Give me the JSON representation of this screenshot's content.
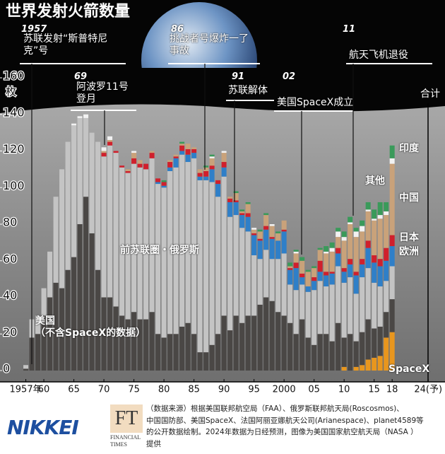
{
  "chart_data": {
    "type": "bar",
    "stacked": true,
    "title": "世界发射火箭数量",
    "y_unit": "枚",
    "total_label": "合计",
    "x": [
      1957,
      1958,
      1959,
      1960,
      1961,
      1962,
      1963,
      1964,
      1965,
      1966,
      1967,
      1968,
      1969,
      1970,
      1971,
      1972,
      1973,
      1974,
      1975,
      1976,
      1977,
      1978,
      1979,
      1980,
      1981,
      1982,
      1983,
      1984,
      1985,
      1986,
      1987,
      1988,
      1989,
      1990,
      1991,
      1992,
      1993,
      1994,
      1995,
      1996,
      1997,
      1998,
      1999,
      2000,
      2001,
      2002,
      2003,
      2004,
      2005,
      2006,
      2007,
      2008,
      2009,
      2010,
      2011,
      2012,
      2013,
      2014,
      2015,
      2016,
      2017,
      2018
    ],
    "xlim": [
      1952.7,
      2026.8
    ],
    "xticks": [
      {
        "value": 1957,
        "label": "1957年"
      },
      {
        "value": 1960,
        "label": "60"
      },
      {
        "value": 1965,
        "label": "65"
      },
      {
        "value": 1970,
        "label": "70"
      },
      {
        "value": 1975,
        "label": "75"
      },
      {
        "value": 1980,
        "label": "80"
      },
      {
        "value": 1985,
        "label": "85"
      },
      {
        "value": 1990,
        "label": "90"
      },
      {
        "value": 1995,
        "label": "95"
      },
      2000,
      {
        "value": 2005,
        "label": "05"
      },
      {
        "value": 2010,
        "label": "10"
      },
      {
        "value": 2015,
        "label": "15"
      },
      {
        "value": 2018,
        "label": "18"
      },
      {
        "value": 2024,
        "label": "24(予)"
      }
    ],
    "ylim": [
      0,
      160
    ],
    "yticks": [
      0,
      20,
      40,
      60,
      80,
      100,
      120,
      140,
      160
    ],
    "series": [
      {
        "name": "SpaceX",
        "color": "#e8961e",
        "values": [
          0,
          0,
          0,
          0,
          0,
          0,
          0,
          0,
          0,
          0,
          0,
          0,
          0,
          0,
          0,
          0,
          0,
          0,
          0,
          0,
          0,
          0,
          0,
          0,
          0,
          0,
          0,
          0,
          0,
          0,
          0,
          0,
          0,
          0,
          0,
          0,
          0,
          0,
          0,
          0,
          0,
          0,
          0,
          0,
          0,
          0,
          0,
          0,
          0,
          0,
          0,
          0,
          0,
          2,
          0,
          2,
          3,
          6,
          7,
          8,
          18,
          21
        ]
      },
      {
        "name": "美国\n（不含SpaceX的数据）",
        "color": "#4a4745",
        "values": [
          1,
          18,
          20,
          30,
          40,
          48,
          45,
          55,
          62,
          80,
          95,
          75,
          55,
          40,
          40,
          35,
          30,
          28,
          32,
          28,
          28,
          32,
          20,
          18,
          20,
          20,
          24,
          26,
          20,
          10,
          10,
          14,
          20,
          30,
          22,
          30,
          26,
          30,
          30,
          36,
          40,
          38,
          32,
          30,
          26,
          20,
          28,
          18,
          14,
          20,
          20,
          16,
          26,
          16,
          20,
          14,
          18,
          22,
          16,
          16,
          14,
          18
        ]
      },
      {
        "name": "前苏联圏・俄罗斯",
        "color": "#c4c4c4",
        "values": [
          2,
          10,
          10,
          15,
          25,
          47,
          65,
          70,
          72,
          58,
          43,
          55,
          70,
          77,
          83,
          84,
          81,
          80,
          81,
          83,
          82,
          84,
          82,
          82,
          89,
          91,
          94,
          88,
          96,
          94,
          94,
          89,
          75,
          76,
          62,
          55,
          52,
          46,
          33,
          25,
          26,
          23,
          29,
          34,
          21,
          24,
          19,
          25,
          30,
          29,
          26,
          31,
          31,
          30,
          31,
          26,
          30,
          28,
          25,
          22,
          17,
          18
        ]
      },
      {
        "name": "欧洲",
        "color": "#2f7fc8",
        "values": [
          0,
          0,
          0,
          0,
          0,
          0,
          0,
          0,
          0,
          0,
          0,
          0,
          0,
          0,
          0,
          0,
          0,
          0,
          0,
          0,
          0,
          0,
          1,
          1,
          2,
          5,
          2,
          4,
          3,
          2,
          2,
          7,
          7,
          5,
          8,
          7,
          7,
          8,
          11,
          10,
          11,
          11,
          10,
          12,
          8,
          12,
          4,
          3,
          5,
          5,
          6,
          6,
          7,
          6,
          7,
          10,
          7,
          11,
          11,
          11,
          11,
          11
        ]
      },
      {
        "name": "日本",
        "color": "#d0202c",
        "values": [
          0,
          0,
          0,
          0,
          0,
          0,
          0,
          0,
          0,
          0,
          0,
          0,
          0,
          2,
          2,
          1,
          1,
          1,
          3,
          2,
          3,
          3,
          2,
          2,
          3,
          1,
          3,
          3,
          2,
          2,
          3,
          2,
          2,
          3,
          2,
          1,
          1,
          2,
          1,
          1,
          2,
          1,
          0,
          1,
          1,
          3,
          2,
          0,
          2,
          6,
          2,
          1,
          3,
          2,
          3,
          2,
          3,
          4,
          4,
          4,
          7,
          6
        ]
      },
      {
        "name": "中国",
        "color": "#c9a27a",
        "values": [
          0,
          0,
          0,
          0,
          0,
          0,
          0,
          0,
          0,
          0,
          0,
          0,
          0,
          1,
          1,
          0,
          0,
          1,
          3,
          2,
          0,
          1,
          0,
          0,
          1,
          1,
          1,
          3,
          1,
          2,
          2,
          4,
          0,
          5,
          1,
          4,
          1,
          5,
          2,
          4,
          6,
          6,
          4,
          5,
          1,
          5,
          7,
          8,
          5,
          6,
          10,
          11,
          6,
          15,
          19,
          19,
          15,
          16,
          19,
          22,
          18,
          39
        ]
      },
      {
        "name": "其他",
        "color": "#f2f2f2",
        "values": [
          0,
          0,
          0,
          0,
          0,
          0,
          0,
          0,
          1,
          1,
          2,
          0,
          0,
          2,
          2,
          0,
          0,
          0,
          1,
          0,
          0,
          0,
          0,
          0,
          0,
          0,
          0,
          0,
          0,
          0,
          0,
          1,
          0,
          1,
          0,
          0,
          0,
          0,
          1,
          0,
          0,
          1,
          0,
          0,
          0,
          1,
          0,
          0,
          0,
          0,
          1,
          2,
          3,
          2,
          1,
          3,
          3,
          1,
          1,
          2,
          2,
          3
        ]
      },
      {
        "name": "印度",
        "color": "#3a9a5a",
        "values": [
          0,
          0,
          0,
          0,
          0,
          0,
          0,
          0,
          0,
          0,
          0,
          0,
          0,
          0,
          0,
          0,
          0,
          0,
          0,
          0,
          0,
          0,
          0,
          1,
          0,
          0,
          1,
          0,
          0,
          0,
          1,
          1,
          0,
          0,
          0,
          1,
          1,
          1,
          0,
          1,
          1,
          0,
          1,
          0,
          2,
          1,
          2,
          1,
          1,
          1,
          3,
          3,
          2,
          3,
          3,
          2,
          3,
          4,
          5,
          7,
          5,
          7
        ]
      }
    ],
    "annotations": [
      {
        "year": "1957",
        "text": "苏联发射“斯普特尼\n克”号"
      },
      {
        "year": "69",
        "text": "阿波罗11号\n登月"
      },
      {
        "year": "86",
        "text": "挑战者号爆炸一了\n事故"
      },
      {
        "year": "91",
        "text": "苏联解体"
      },
      {
        "year": "02",
        "text": "美国SpaceX成立"
      },
      {
        "year": "11",
        "text": "航天飞机退役"
      }
    ]
  },
  "footer": {
    "brand": "NIKKEI",
    "ft_logo": "FT",
    "ft_name": "FINANCIAL\nTIMES",
    "source": "（数据来源）根据美国联邦航空局（FAA）、俄罗斯联邦航天局(Roscosmos)、\n中国国防部、美国SpaceX、法国阿丽亚娜航天公司(Arianespace)、planet4589等\n的公开数据绘制。2024年数据为日经预测，图像为美国国家航空航天局（NASA ）\n提供"
  }
}
